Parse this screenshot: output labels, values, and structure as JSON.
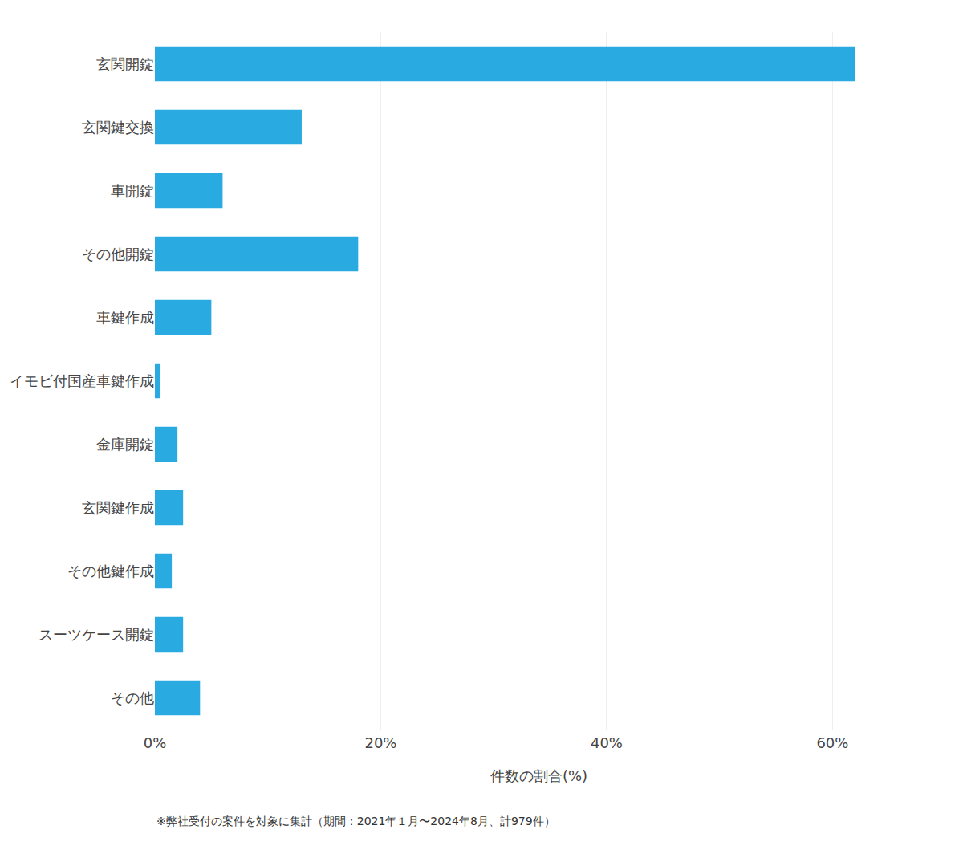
{
  "chart_data": {
    "type": "bar",
    "orientation": "horizontal",
    "categories": [
      "玄関開錠",
      "玄関鍵交換",
      "車開錠",
      "その他開錠",
      "車鍵作成",
      "イモビ付国産車鍵作成",
      "金庫開錠",
      "玄関鍵作成",
      "その他鍵作成",
      "スーツケース開錠",
      "その他"
    ],
    "values": [
      62.0,
      13.0,
      6.0,
      18.0,
      5.0,
      0.5,
      2.0,
      2.5,
      1.5,
      2.5,
      4.0
    ],
    "color": "#29ABE2",
    "xlabel": "件数の割合(%)",
    "xlim": [
      0,
      68
    ],
    "xticks": [
      {
        "value": 0,
        "label": "0%"
      },
      {
        "value": 20,
        "label": "20%"
      },
      {
        "value": 40,
        "label": "40%"
      },
      {
        "value": 60,
        "label": "60%"
      }
    ],
    "grid": true,
    "annotations": [
      "※弊社受付の案件を対象に集計（期間：2021年１月〜2024年8月、計979件）"
    ]
  }
}
